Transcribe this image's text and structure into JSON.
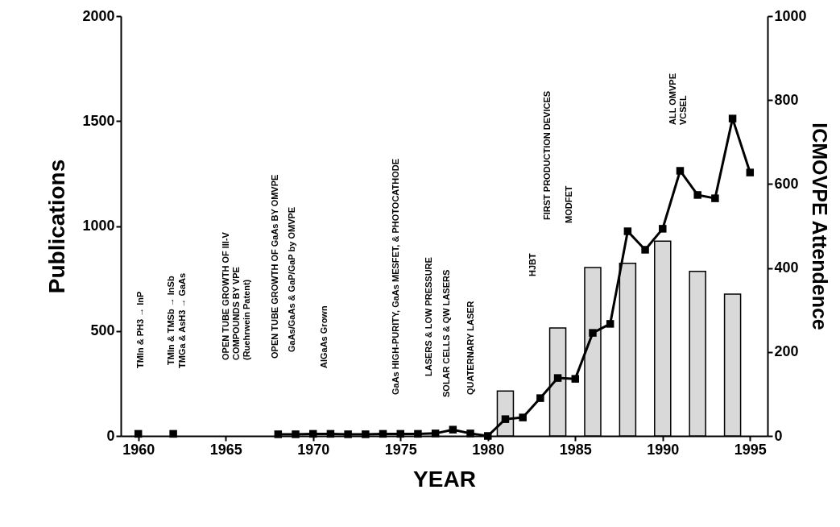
{
  "chart_data": {
    "type": "line",
    "xlabel": "YEAR",
    "ylabel": "Publications",
    "y2label": "ICMOVPE Attendence",
    "xlim": [
      1959,
      1996
    ],
    "xticks": [
      1960,
      1965,
      1970,
      1975,
      1980,
      1985,
      1990,
      1995
    ],
    "ylim": [
      0,
      2000
    ],
    "yticks": [
      0,
      500,
      1000,
      1500,
      2000
    ],
    "y2lim": [
      0,
      1000
    ],
    "y2ticks": [
      0,
      200,
      400,
      600,
      800,
      1000
    ],
    "grid": false,
    "marker": "square",
    "line_style": "solid",
    "series": [
      {
        "type": "bar",
        "axis": "y2",
        "color": "#d9d9d9",
        "x": [
          1981,
          1984,
          1986,
          1988,
          1990,
          1992,
          1994
        ],
        "values": [
          107,
          257,
          401,
          411,
          464,
          392,
          338
        ]
      },
      {
        "color": "#000000",
        "x": [
          1960,
          1961,
          1962,
          1963,
          1964,
          1965,
          1966,
          1967,
          1968,
          1969,
          1970,
          1971,
          1972,
          1973,
          1974,
          1975,
          1976,
          1977,
          1978,
          1979,
          1980,
          1981,
          1982,
          1983,
          1984,
          1985,
          1986,
          1987,
          1988,
          1989,
          1990,
          1991,
          1992,
          1993,
          1994,
          1995
        ],
        "values": [
          10,
          null,
          10,
          null,
          null,
          null,
          null,
          null,
          8,
          8,
          10,
          10,
          8,
          8,
          10,
          10,
          10,
          12,
          30,
          12,
          0,
          80,
          88,
          180,
          276,
          272,
          491,
          534,
          975,
          887,
          987,
          1263,
          1148,
          1132,
          1512,
          1255
        ]
      }
    ],
    "annotations": [
      "TMIn & PH3 → InP",
      "TMIn & TMSb → InSb",
      "TMGa & AsH3 → GaAs",
      "OPEN TUBE GROWTH OF III-V\nCOMPOUNDS BY VPE\n(Ruehrwein Patent)",
      "OPEN TUBE GROWTH OF GaAs BY OMVPE",
      "GaAs/GaAs & GaP/GaP by OMVPE",
      "AlGaAs Grown",
      "GaAs HIGH-PURITY, GaAs MESFET, & PHOTOCATHODE",
      "LASERS & LOW PRESSURE",
      "SOLAR CELLS & QW LASERS",
      "QUATERNARY LASER",
      "HJBT",
      "FIRST PRODUCTION DEVICES",
      "MODFET",
      "ALL OMVPE\nVCSEL"
    ]
  }
}
